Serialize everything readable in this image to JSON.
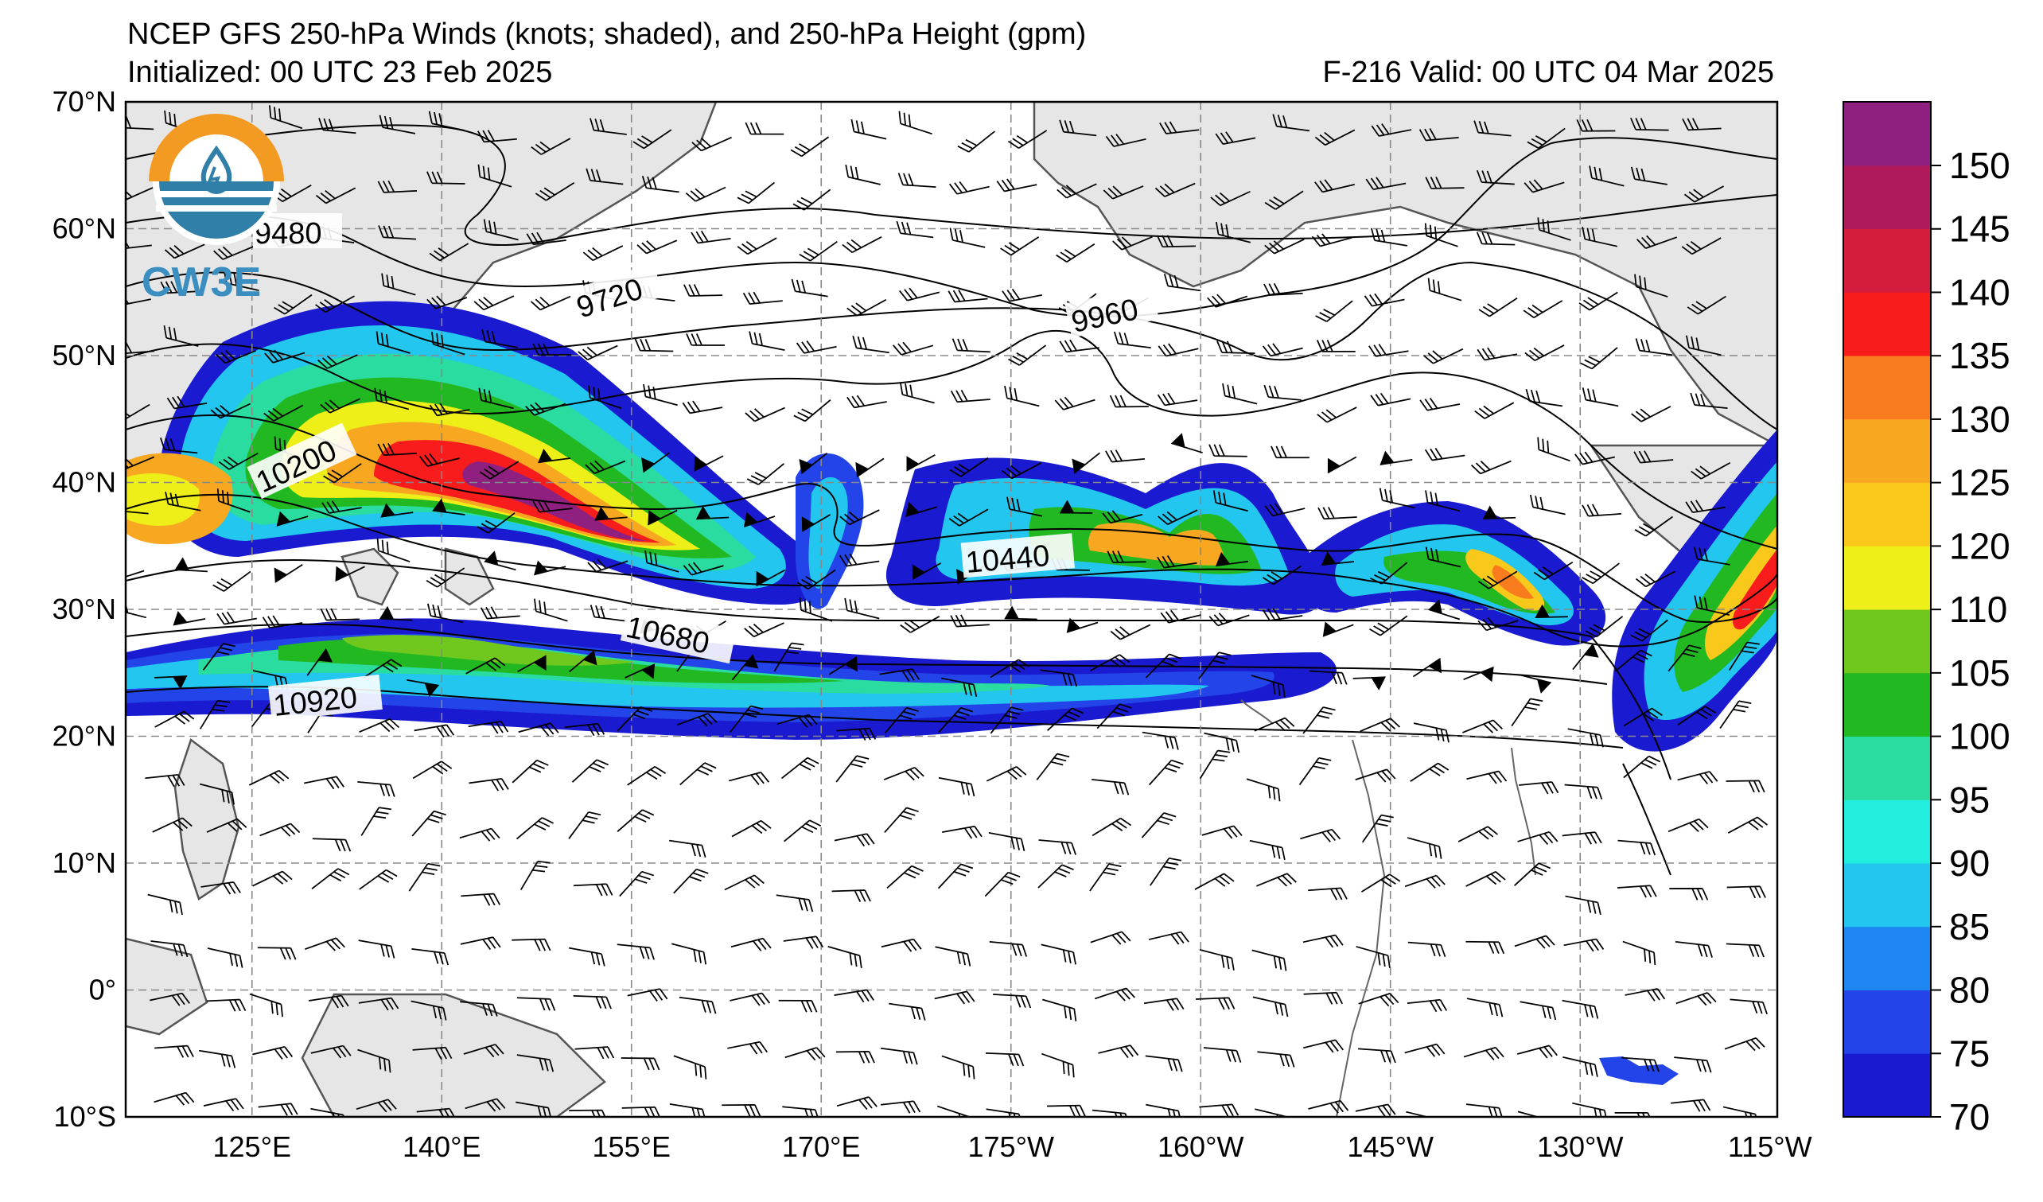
{
  "header": {
    "title": "NCEP GFS 250-hPa Winds (knots; shaded), and 250-hPa Height (gpm)",
    "initialized": "Initialized: 00 UTC 23 Feb 2025",
    "valid": "F-216  Valid: 00 UTC 04 Mar 2025"
  },
  "logo": {
    "text": "CW3E"
  },
  "map": {
    "lat_labels": [
      "70°N",
      "60°N",
      "50°N",
      "40°N",
      "30°N",
      "20°N",
      "10°N",
      "0°",
      "10°S"
    ],
    "lon_labels": [
      "125°E",
      "140°E",
      "155°E",
      "170°E",
      "175°W",
      "160°W",
      "145°W",
      "130°W",
      "115°W"
    ],
    "contour_labels": [
      "9480",
      "9720",
      "9960",
      "10200",
      "10440",
      "10680",
      "10920"
    ]
  },
  "colorbar": {
    "tick_labels": [
      "150",
      "145",
      "140",
      "135",
      "130",
      "125",
      "120",
      "110",
      "105",
      "100",
      "95",
      "90",
      "85",
      "80",
      "75",
      "70"
    ],
    "colors": [
      "#1a1ad0",
      "#2244e8",
      "#1e86f0",
      "#22c6ef",
      "#22eede",
      "#2adca0",
      "#22b822",
      "#70c81e",
      "#eeee18",
      "#f8c81a",
      "#f8a820",
      "#f87c1e",
      "#f81c1c",
      "#d41c3c",
      "#ae1a5c",
      "#902080"
    ]
  }
}
